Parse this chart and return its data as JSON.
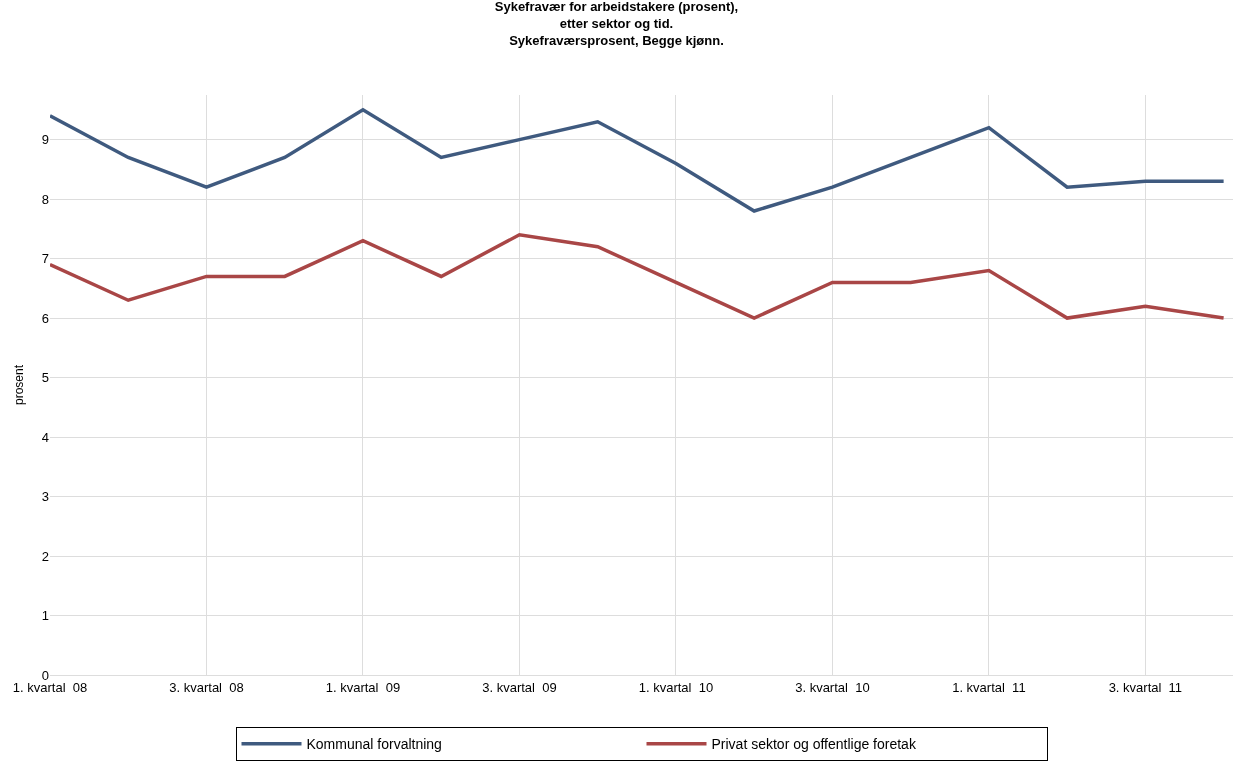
{
  "chart_data": {
    "type": "line",
    "title": "Sykefravær for arbeidstakere (prosent),\netter sektor og tid.\nSykefraværsprosent, Begge kjønn.",
    "ylabel": "prosent",
    "categories": [
      "1. kvartal  08",
      null,
      "3. kvartal  08",
      null,
      "1. kvartal  09",
      null,
      "3. kvartal  09",
      null,
      "1. kvartal  10",
      null,
      "3. kvartal  10",
      null,
      "1. kvartal  11",
      null,
      "3. kvartal  11",
      null
    ],
    "series": [
      {
        "name": "Kommunal forvaltning",
        "color": "#3f5a7f",
        "values": [
          9.4,
          8.7,
          8.2,
          8.7,
          9.5,
          8.7,
          9.0,
          9.3,
          8.6,
          7.8,
          8.2,
          8.7,
          9.2,
          8.2,
          8.3,
          8.3
        ]
      },
      {
        "name": "Privat sektor og offentlige foretak",
        "color": "#a94646",
        "values": [
          6.9,
          6.3,
          6.7,
          6.7,
          7.3,
          6.7,
          7.4,
          7.2,
          6.6,
          6.0,
          6.6,
          6.6,
          6.8,
          6.0,
          6.2,
          6.0
        ]
      }
    ],
    "ylim": [
      0,
      9.75
    ],
    "yticks": [
      0,
      1,
      2,
      3,
      4,
      5,
      6,
      7,
      8,
      9
    ],
    "grid": true,
    "legend": "bottom",
    "marker": "none",
    "line_style": "solid"
  }
}
